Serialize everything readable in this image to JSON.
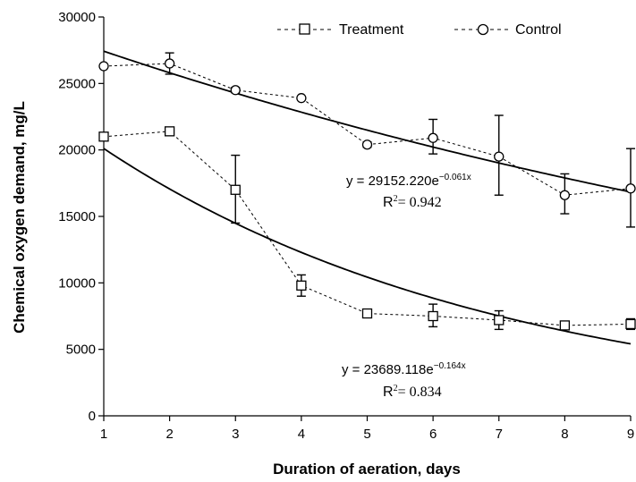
{
  "chart_data": {
    "type": "scatter",
    "xlabel": "Duration of aeration, days",
    "ylabel": "Chemical oxygen demand, mg/L",
    "xlim": [
      1,
      9
    ],
    "ylim": [
      0,
      30000
    ],
    "x_ticks": [
      "1",
      "2",
      "3",
      "4",
      "5",
      "6",
      "7",
      "8",
      "9"
    ],
    "y_ticks": [
      "0",
      "5000",
      "10000",
      "15000",
      "20000",
      "25000",
      "30000"
    ],
    "grid": false,
    "legend_position": "top-right",
    "series": [
      {
        "name": "Treatment",
        "marker": "square",
        "x": [
          1,
          2,
          3,
          4,
          5,
          6,
          7,
          8,
          9
        ],
        "y": [
          21000,
          21400,
          17000,
          9800,
          7700,
          7500,
          7200,
          6800,
          6900
        ],
        "err_high": [
          21000,
          21400,
          19600,
          10600,
          7700,
          8400,
          7900,
          6800,
          7300
        ],
        "err_low": [
          21000,
          21400,
          14500,
          9000,
          7700,
          6700,
          6500,
          6800,
          6500
        ],
        "trend": {
          "a": 23689.118,
          "b": -0.164
        }
      },
      {
        "name": "Control",
        "marker": "circle",
        "x": [
          1,
          2,
          3,
          4,
          5,
          6,
          7,
          8,
          9
        ],
        "y": [
          26300,
          26500,
          24500,
          23900,
          20400,
          20900,
          19500,
          16600,
          17100
        ],
        "err_high": [
          26300,
          27300,
          24700,
          23900,
          20600,
          22300,
          22600,
          18200,
          20100
        ],
        "err_low": [
          26300,
          25700,
          24300,
          23900,
          20200,
          19700,
          16600,
          15200,
          14200
        ],
        "trend": {
          "a": 29152.22,
          "b": -0.061
        }
      }
    ],
    "annotations": {
      "control_eq": {
        "prefix": "y = 29152.220e",
        "exp": "−0.061x",
        "r2_prefix": "R",
        "r2_sup": "2",
        "r2_value": "= 0.942"
      },
      "treatment_eq": {
        "prefix": "y = 23689.118e",
        "exp": "−0.164x",
        "r2_prefix": "R",
        "r2_sup": "2",
        "r2_value": "= 0.834"
      }
    }
  }
}
